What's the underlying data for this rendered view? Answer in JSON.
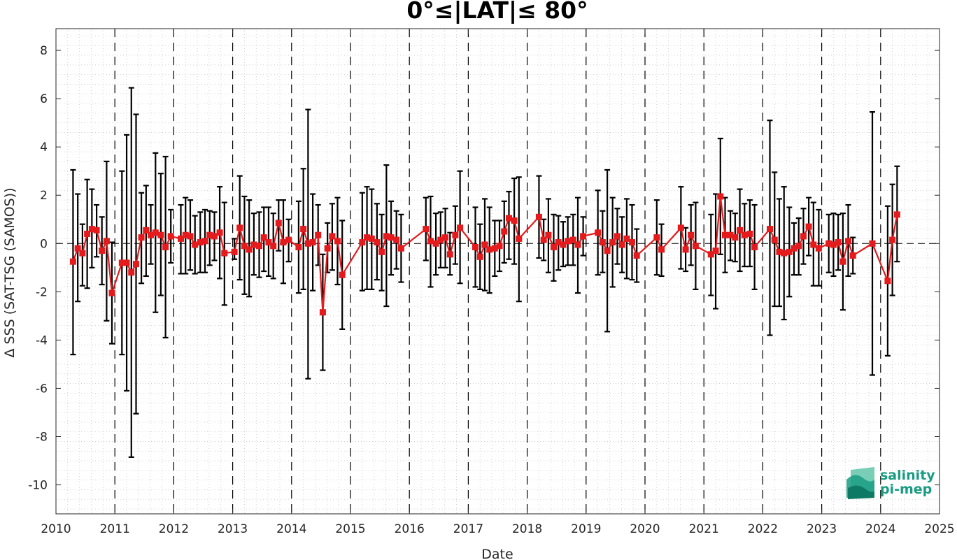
{
  "chart_data": {
    "type": "line",
    "title": "0°≤|LAT|≤ 80°",
    "xlabel": "Date",
    "ylabel": "Δ SSS (SAT-TSG (SAMOS))",
    "xlim": [
      2010,
      2025
    ],
    "ylim": [
      -11.2,
      8.9
    ],
    "xticks": [
      "2010",
      "2011",
      "2012",
      "2013",
      "2014",
      "2015",
      "2016",
      "2017",
      "2018",
      "2019",
      "2020",
      "2021",
      "2022",
      "2023",
      "2024",
      "2025"
    ],
    "yticks": [
      "-10",
      "-8",
      "-6",
      "-4",
      "-2",
      "0",
      "2",
      "4",
      "6",
      "8"
    ],
    "grid": "minor dotted",
    "year_dividers": [
      2011,
      2012,
      2013,
      2014,
      2015,
      2016,
      2017,
      2018,
      2019,
      2020,
      2021,
      2022,
      2023,
      2024
    ],
    "zero_line": true,
    "series": [
      {
        "color": "#e41a1c",
        "errorbar_color": "#000000",
        "marker": "square",
        "points": [
          {
            "x": 2010.29,
            "y": -0.75,
            "lo": -4.6,
            "hi": 3.05
          },
          {
            "x": 2010.37,
            "y": -0.2,
            "lo": -2.4,
            "hi": 2.05
          },
          {
            "x": 2010.45,
            "y": -0.4,
            "lo": -1.75,
            "hi": 0.8
          },
          {
            "x": 2010.53,
            "y": 0.4,
            "lo": -1.85,
            "hi": 2.65
          },
          {
            "x": 2010.61,
            "y": 0.6,
            "lo": -1.0,
            "hi": 2.25
          },
          {
            "x": 2010.69,
            "y": 0.55,
            "lo": -0.55,
            "hi": 1.6
          },
          {
            "x": 2010.78,
            "y": -0.3,
            "lo": -1.7,
            "hi": 1.1
          },
          {
            "x": 2010.86,
            "y": 0.1,
            "lo": -3.2,
            "hi": 3.4
          },
          {
            "x": 2010.95,
            "y": -2.05,
            "lo": -4.15,
            "hi": 0.05
          },
          {
            "x": 2011.12,
            "y": -0.8,
            "lo": -4.6,
            "hi": 3.0
          },
          {
            "x": 2011.2,
            "y": -0.8,
            "lo": -6.1,
            "hi": 4.5
          },
          {
            "x": 2011.28,
            "y": -1.2,
            "lo": -8.85,
            "hi": 6.45
          },
          {
            "x": 2011.36,
            "y": -0.85,
            "lo": -7.05,
            "hi": 5.35
          },
          {
            "x": 2011.45,
            "y": 0.25,
            "lo": -1.65,
            "hi": 2.1
          },
          {
            "x": 2011.53,
            "y": 0.55,
            "lo": -1.35,
            "hi": 2.4
          },
          {
            "x": 2011.61,
            "y": 0.35,
            "lo": -0.85,
            "hi": 1.6
          },
          {
            "x": 2011.69,
            "y": 0.45,
            "lo": -2.85,
            "hi": 3.75
          },
          {
            "x": 2011.78,
            "y": 0.35,
            "lo": -2.15,
            "hi": 2.9
          },
          {
            "x": 2011.86,
            "y": -0.15,
            "lo": -3.9,
            "hi": 3.6
          },
          {
            "x": 2011.95,
            "y": 0.3,
            "lo": -0.8,
            "hi": 1.4
          },
          {
            "x": 2012.12,
            "y": 0.2,
            "lo": -1.25,
            "hi": 1.6
          },
          {
            "x": 2012.2,
            "y": 0.35,
            "lo": -1.25,
            "hi": 1.9
          },
          {
            "x": 2012.28,
            "y": 0.3,
            "lo": -1.1,
            "hi": 1.8
          },
          {
            "x": 2012.36,
            "y": -0.05,
            "lo": -1.25,
            "hi": 1.15
          },
          {
            "x": 2012.45,
            "y": 0.05,
            "lo": -1.2,
            "hi": 1.3
          },
          {
            "x": 2012.53,
            "y": 0.1,
            "lo": -1.2,
            "hi": 1.4
          },
          {
            "x": 2012.61,
            "y": 0.35,
            "lo": -0.9,
            "hi": 1.35
          },
          {
            "x": 2012.69,
            "y": 0.3,
            "lo": -0.7,
            "hi": 1.3
          },
          {
            "x": 2012.78,
            "y": 0.45,
            "lo": -1.45,
            "hi": 2.35
          },
          {
            "x": 2012.86,
            "y": -0.4,
            "lo": -2.55,
            "hi": 1.7
          },
          {
            "x": 2013.03,
            "y": -0.35,
            "lo": -0.65,
            "hi": 0.2
          },
          {
            "x": 2013.12,
            "y": 0.65,
            "lo": -1.5,
            "hi": 2.8
          },
          {
            "x": 2013.2,
            "y": -0.1,
            "lo": -2.1,
            "hi": 1.95
          },
          {
            "x": 2013.28,
            "y": -0.25,
            "lo": -2.2,
            "hi": 1.8
          },
          {
            "x": 2013.36,
            "y": -0.05,
            "lo": -1.3,
            "hi": 1.25
          },
          {
            "x": 2013.45,
            "y": -0.1,
            "lo": -1.4,
            "hi": 1.3
          },
          {
            "x": 2013.53,
            "y": 0.25,
            "lo": -1.15,
            "hi": 1.5
          },
          {
            "x": 2013.61,
            "y": 0.05,
            "lo": -1.35,
            "hi": 1.5
          },
          {
            "x": 2013.69,
            "y": -0.1,
            "lo": -1.45,
            "hi": 1.25
          },
          {
            "x": 2013.78,
            "y": 0.85,
            "lo": -0.3,
            "hi": 1.8
          },
          {
            "x": 2013.86,
            "y": 0.05,
            "lo": -1.65,
            "hi": 1.8
          },
          {
            "x": 2013.95,
            "y": 0.15,
            "lo": -0.75,
            "hi": 1.0
          },
          {
            "x": 2014.12,
            "y": -0.15,
            "lo": -2.05,
            "hi": 1.75
          },
          {
            "x": 2014.2,
            "y": 0.6,
            "lo": -1.9,
            "hi": 3.1
          },
          {
            "x": 2014.28,
            "y": 0.0,
            "lo": -5.6,
            "hi": 5.55
          },
          {
            "x": 2014.36,
            "y": 0.05,
            "lo": -1.95,
            "hi": 2.05
          },
          {
            "x": 2014.45,
            "y": 0.35,
            "lo": -0.9,
            "hi": 1.6
          },
          {
            "x": 2014.53,
            "y": -2.85,
            "lo": -5.25,
            "hi": -0.45
          },
          {
            "x": 2014.61,
            "y": -0.2,
            "lo": -1.2,
            "hi": 0.85
          },
          {
            "x": 2014.69,
            "y": 0.3,
            "lo": -1.1,
            "hi": 1.65
          },
          {
            "x": 2014.78,
            "y": 0.1,
            "lo": -1.7,
            "hi": 1.9
          },
          {
            "x": 2014.86,
            "y": -1.3,
            "lo": -3.55,
            "hi": 0.95
          },
          {
            "x": 2015.2,
            "y": 0.05,
            "lo": -1.95,
            "hi": 2.1
          },
          {
            "x": 2015.28,
            "y": 0.25,
            "lo": -1.9,
            "hi": 2.35
          },
          {
            "x": 2015.36,
            "y": 0.2,
            "lo": -1.9,
            "hi": 2.25
          },
          {
            "x": 2015.45,
            "y": 0.05,
            "lo": -1.5,
            "hi": 1.65
          },
          {
            "x": 2015.53,
            "y": -0.35,
            "lo": -1.95,
            "hi": 1.2
          },
          {
            "x": 2015.61,
            "y": 0.3,
            "lo": -2.6,
            "hi": 3.25
          },
          {
            "x": 2015.69,
            "y": 0.25,
            "lo": -1.3,
            "hi": 1.75
          },
          {
            "x": 2015.78,
            "y": 0.15,
            "lo": -1.05,
            "hi": 1.35
          },
          {
            "x": 2015.86,
            "y": -0.2,
            "lo": -1.6,
            "hi": 1.2
          },
          {
            "x": 2016.28,
            "y": 0.6,
            "lo": -0.7,
            "hi": 1.9
          },
          {
            "x": 2016.36,
            "y": 0.1,
            "lo": -1.8,
            "hi": 1.95
          },
          {
            "x": 2016.45,
            "y": 0.0,
            "lo": -1.3,
            "hi": 1.25
          },
          {
            "x": 2016.53,
            "y": 0.15,
            "lo": -1.0,
            "hi": 1.3
          },
          {
            "x": 2016.61,
            "y": 0.25,
            "lo": -1.0,
            "hi": 1.45
          },
          {
            "x": 2016.69,
            "y": -0.45,
            "lo": -1.3,
            "hi": 0.45
          },
          {
            "x": 2016.78,
            "y": 0.35,
            "lo": -0.85,
            "hi": 1.55
          },
          {
            "x": 2016.86,
            "y": 0.65,
            "lo": -1.65,
            "hi": 3.0
          },
          {
            "x": 2017.12,
            "y": -0.15,
            "lo": -1.8,
            "hi": 1.5
          },
          {
            "x": 2017.2,
            "y": -0.55,
            "lo": -1.9,
            "hi": 0.8
          },
          {
            "x": 2017.28,
            "y": -0.05,
            "lo": -1.95,
            "hi": 1.85
          },
          {
            "x": 2017.36,
            "y": -0.25,
            "lo": -2.05,
            "hi": 1.5
          },
          {
            "x": 2017.45,
            "y": -0.2,
            "lo": -1.35,
            "hi": 0.95
          },
          {
            "x": 2017.53,
            "y": -0.1,
            "lo": -1.15,
            "hi": 0.95
          },
          {
            "x": 2017.61,
            "y": 0.5,
            "lo": -0.8,
            "hi": 1.75
          },
          {
            "x": 2017.69,
            "y": 1.05,
            "lo": -0.65,
            "hi": 2.15
          },
          {
            "x": 2017.78,
            "y": 0.95,
            "lo": -0.85,
            "hi": 2.7
          },
          {
            "x": 2017.86,
            "y": 0.2,
            "lo": -2.4,
            "hi": 2.75
          },
          {
            "x": 2018.2,
            "y": 1.1,
            "lo": -0.6,
            "hi": 2.8
          },
          {
            "x": 2018.28,
            "y": 0.15,
            "lo": -0.7,
            "hi": 1.0
          },
          {
            "x": 2018.36,
            "y": 0.35,
            "lo": -1.2,
            "hi": 1.85
          },
          {
            "x": 2018.45,
            "y": -0.15,
            "lo": -1.55,
            "hi": 1.2
          },
          {
            "x": 2018.53,
            "y": 0.05,
            "lo": -1.1,
            "hi": 1.15
          },
          {
            "x": 2018.61,
            "y": -0.05,
            "lo": -0.95,
            "hi": 0.9
          },
          {
            "x": 2018.69,
            "y": 0.1,
            "lo": -0.9,
            "hi": 1.1
          },
          {
            "x": 2018.78,
            "y": 0.15,
            "lo": -0.9,
            "hi": 1.2
          },
          {
            "x": 2018.86,
            "y": -0.05,
            "lo": -2.05,
            "hi": 1.9
          },
          {
            "x": 2018.95,
            "y": 0.3,
            "lo": -0.5,
            "hi": 1.1
          },
          {
            "x": 2019.2,
            "y": 0.45,
            "lo": -1.3,
            "hi": 2.2
          },
          {
            "x": 2019.28,
            "y": 0.05,
            "lo": -1.2,
            "hi": 1.35
          },
          {
            "x": 2019.36,
            "y": -0.3,
            "lo": -3.65,
            "hi": 3.05
          },
          {
            "x": 2019.45,
            "y": 0.05,
            "lo": -1.8,
            "hi": 1.9
          },
          {
            "x": 2019.53,
            "y": 0.3,
            "lo": -0.85,
            "hi": 1.45
          },
          {
            "x": 2019.61,
            "y": -0.05,
            "lo": -1.2,
            "hi": 1.1
          },
          {
            "x": 2019.69,
            "y": 0.2,
            "lo": -1.45,
            "hi": 1.85
          },
          {
            "x": 2019.78,
            "y": 0.05,
            "lo": -1.5,
            "hi": 1.6
          },
          {
            "x": 2019.86,
            "y": -0.5,
            "lo": -1.6,
            "hi": 0.6
          },
          {
            "x": 2020.2,
            "y": 0.25,
            "lo": -1.3,
            "hi": 1.8
          },
          {
            "x": 2020.28,
            "y": -0.25,
            "lo": -1.35,
            "hi": 0.8
          },
          {
            "x": 2020.61,
            "y": 0.65,
            "lo": -1.05,
            "hi": 2.35
          },
          {
            "x": 2020.69,
            "y": -0.25,
            "lo": -1.15,
            "hi": 0.65
          },
          {
            "x": 2020.78,
            "y": 0.35,
            "lo": -0.9,
            "hi": 1.6
          },
          {
            "x": 2020.86,
            "y": -0.1,
            "lo": -1.9,
            "hi": 1.7
          },
          {
            "x": 2021.12,
            "y": -0.45,
            "lo": -2.15,
            "hi": 1.2
          },
          {
            "x": 2021.2,
            "y": -0.3,
            "lo": -2.7,
            "hi": 2.05
          },
          {
            "x": 2021.28,
            "y": 1.95,
            "lo": -0.45,
            "hi": 4.35
          },
          {
            "x": 2021.36,
            "y": 0.35,
            "lo": -1.2,
            "hi": 1.9
          },
          {
            "x": 2021.45,
            "y": 0.35,
            "lo": -0.7,
            "hi": 1.35
          },
          {
            "x": 2021.53,
            "y": 0.25,
            "lo": -0.75,
            "hi": 1.25
          },
          {
            "x": 2021.61,
            "y": 0.55,
            "lo": -1.15,
            "hi": 2.25
          },
          {
            "x": 2021.69,
            "y": 0.35,
            "lo": -0.95,
            "hi": 1.65
          },
          {
            "x": 2021.78,
            "y": 0.4,
            "lo": -0.95,
            "hi": 1.8
          },
          {
            "x": 2021.86,
            "y": -0.15,
            "lo": -1.9,
            "hi": 1.6
          },
          {
            "x": 2022.12,
            "y": 0.6,
            "lo": -3.8,
            "hi": 5.1
          },
          {
            "x": 2022.2,
            "y": 0.15,
            "lo": -2.6,
            "hi": 2.95
          },
          {
            "x": 2022.28,
            "y": -0.35,
            "lo": -2.6,
            "hi": 1.85
          },
          {
            "x": 2022.36,
            "y": -0.4,
            "lo": -3.15,
            "hi": 2.35
          },
          {
            "x": 2022.45,
            "y": -0.35,
            "lo": -2.2,
            "hi": 1.5
          },
          {
            "x": 2022.53,
            "y": -0.2,
            "lo": -1.3,
            "hi": 0.85
          },
          {
            "x": 2022.61,
            "y": -0.1,
            "lo": -1.3,
            "hi": 1.05
          },
          {
            "x": 2022.69,
            "y": 0.3,
            "lo": -0.85,
            "hi": 1.45
          },
          {
            "x": 2022.78,
            "y": 0.7,
            "lo": -0.5,
            "hi": 1.9
          },
          {
            "x": 2022.86,
            "y": -0.05,
            "lo": -1.75,
            "hi": 1.7
          },
          {
            "x": 2022.95,
            "y": -0.2,
            "lo": -1.75,
            "hi": 1.4
          },
          {
            "x": 2023.12,
            "y": 0.0,
            "lo": -1.2,
            "hi": 1.2
          },
          {
            "x": 2023.2,
            "y": -0.05,
            "lo": -1.35,
            "hi": 1.25
          },
          {
            "x": 2023.28,
            "y": 0.05,
            "lo": -1.1,
            "hi": 1.2
          },
          {
            "x": 2023.36,
            "y": -0.75,
            "lo": -2.75,
            "hi": 1.25
          },
          {
            "x": 2023.45,
            "y": 0.1,
            "lo": -1.35,
            "hi": 1.6
          },
          {
            "x": 2023.53,
            "y": -0.5,
            "lo": -1.25,
            "hi": 0.25
          },
          {
            "x": 2023.86,
            "y": 0.0,
            "lo": -5.45,
            "hi": 5.45
          },
          {
            "x": 2024.12,
            "y": -1.55,
            "lo": -4.65,
            "hi": 1.55
          },
          {
            "x": 2024.2,
            "y": 0.15,
            "lo": -2.15,
            "hi": 2.45
          },
          {
            "x": 2024.28,
            "y": 1.2,
            "lo": -0.75,
            "hi": 3.2
          }
        ]
      }
    ]
  },
  "logo": {
    "line1": "salinity",
    "line2": "pi-mep",
    "color": "#1a9c82"
  }
}
